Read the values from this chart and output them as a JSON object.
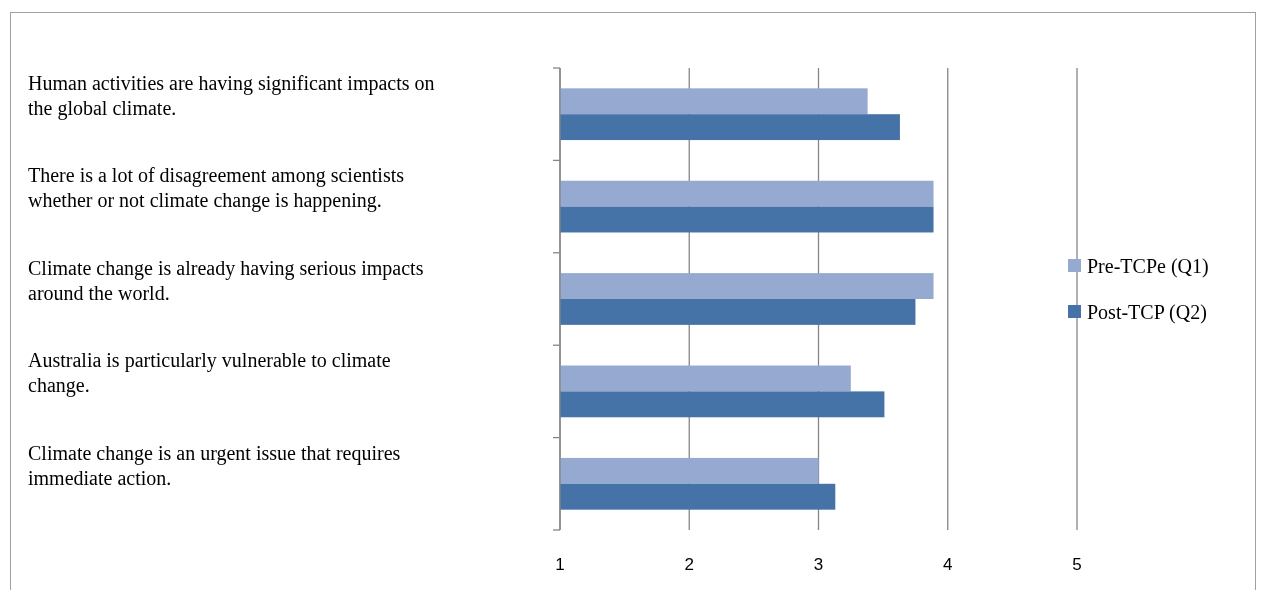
{
  "chart_data": {
    "type": "bar",
    "orientation": "horizontal",
    "categories": [
      "Human activities are having significant impacts on the global climate.",
      "There is a lot of disagreement among scientists whether or not climate change is happening.",
      "Climate change is already having serious impacts around the world.",
      "Australia is particularly vulnerable to climate change.",
      "Climate change is an urgent issue that requires immediate action."
    ],
    "series": [
      {
        "name": "Pre-TCPe (Q1)",
        "color": "#95a9d1",
        "values": [
          3.38,
          3.89,
          3.89,
          3.25,
          3.0
        ]
      },
      {
        "name": "Post-TCP (Q2)",
        "color": "#4673a7",
        "values": [
          3.63,
          3.89,
          3.75,
          3.51,
          3.13
        ]
      }
    ],
    "xlim": [
      1,
      5
    ],
    "xticks": [
      1,
      2,
      3,
      4,
      5
    ],
    "grid": "x",
    "legend": "right"
  }
}
